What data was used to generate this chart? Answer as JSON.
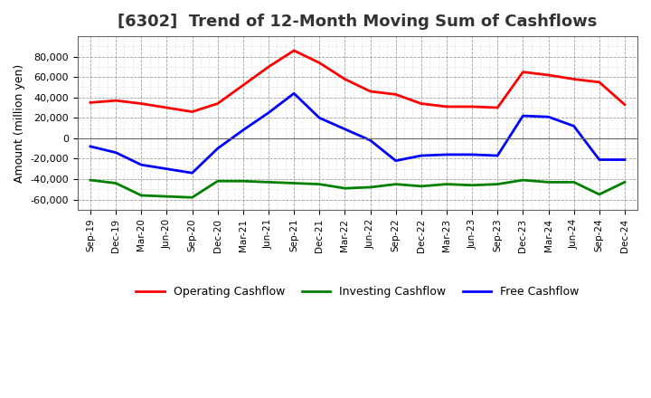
{
  "title": "[6302]  Trend of 12-Month Moving Sum of Cashflows",
  "ylabel": "Amount (million yen)",
  "background_color": "#ffffff",
  "plot_background": "#ffffff",
  "x_labels": [
    "Sep-19",
    "Dec-19",
    "Mar-20",
    "Jun-20",
    "Sep-20",
    "Dec-20",
    "Mar-21",
    "Jun-21",
    "Sep-21",
    "Dec-21",
    "Mar-22",
    "Jun-22",
    "Sep-22",
    "Dec-22",
    "Mar-23",
    "Jun-23",
    "Sep-23",
    "Dec-23",
    "Mar-24",
    "Jun-24",
    "Sep-24",
    "Dec-24"
  ],
  "operating": [
    35000,
    37000,
    34000,
    30000,
    26000,
    34000,
    52000,
    70000,
    86000,
    74000,
    58000,
    46000,
    43000,
    34000,
    31000,
    31000,
    30000,
    65000,
    62000,
    58000,
    55000,
    33000
  ],
  "investing": [
    -41000,
    -44000,
    -56000,
    -57000,
    -58000,
    -42000,
    -42000,
    -43000,
    -44000,
    -45000,
    -49000,
    -48000,
    -45000,
    -47000,
    -45000,
    -46000,
    -45000,
    -41000,
    -43000,
    -43000,
    -55000,
    -43000
  ],
  "free": [
    -8000,
    -14000,
    -26000,
    -30000,
    -34000,
    -10000,
    8000,
    25000,
    44000,
    20000,
    9000,
    -2000,
    -22000,
    -17000,
    -16000,
    -16000,
    -17000,
    22000,
    21000,
    12000,
    -21000,
    -21000
  ],
  "operating_color": "#ff0000",
  "investing_color": "#008000",
  "free_color": "#0000ff",
  "ylim": [
    -70000,
    100000
  ],
  "yticks": [
    -60000,
    -40000,
    -20000,
    0,
    20000,
    40000,
    60000,
    80000
  ],
  "line_width": 2.0,
  "legend_labels": [
    "Operating Cashflow",
    "Investing Cashflow",
    "Free Cashflow"
  ]
}
